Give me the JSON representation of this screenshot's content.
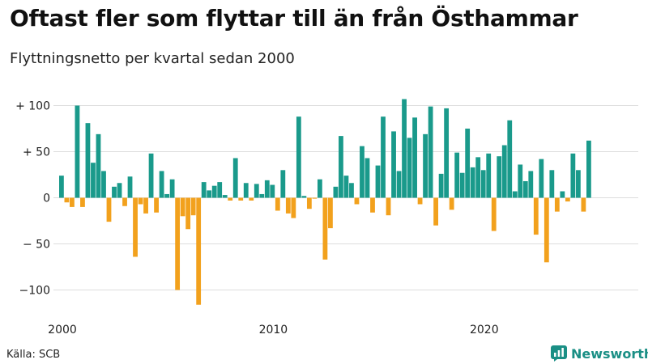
{
  "header": {
    "title": "Oftast fler som flyttar till än från Östhammar",
    "subtitle": "Flyttningsnetto per kvartal sedan 2000"
  },
  "footer": {
    "source": "Källa: SCB",
    "brand": "Newsworthy"
  },
  "colors": {
    "positive": "#1a9a8b",
    "negative": "#f2a11d",
    "grid": "#dddddd",
    "brand": "#1a8f85"
  },
  "chart_data": {
    "type": "bar",
    "title": "Oftast fler som flyttar till än från Östhammar",
    "subtitle": "Flyttningsnetto per kvartal sedan 2000",
    "xlabel": "",
    "ylabel": "",
    "ylim": [
      -115,
      110
    ],
    "grid": true,
    "legend": "none",
    "y_ticks": [
      {
        "value": 100,
        "label": "+ 100"
      },
      {
        "value": 50,
        "label": "+  50"
      },
      {
        "value": 0,
        "label": "0"
      },
      {
        "value": -50,
        "label": "− 50"
      },
      {
        "value": -100,
        "label": "−100"
      }
    ],
    "x_ticks": [
      {
        "value": 2000,
        "label": "2000"
      },
      {
        "value": 2010,
        "label": "2010"
      },
      {
        "value": 2020,
        "label": "2020"
      }
    ],
    "x_start": 2000,
    "periods_per_year": 4,
    "values": [
      24,
      -5,
      -10,
      100,
      -10,
      81,
      38,
      69,
      29,
      -26,
      12,
      16,
      -9,
      23,
      -64,
      -7,
      -17,
      48,
      -16,
      29,
      4,
      20,
      -100,
      -20,
      -34,
      -19,
      -116,
      17,
      8,
      13,
      17,
      3,
      -3,
      43,
      -3,
      16,
      -3,
      15,
      4,
      19,
      14,
      -14,
      30,
      -17,
      -22,
      88,
      2,
      -12,
      -1,
      20,
      -67,
      -33,
      12,
      67,
      24,
      16,
      -7,
      56,
      43,
      -16,
      35,
      88,
      -19,
      72,
      29,
      107,
      65,
      87,
      -7,
      69,
      99,
      -30,
      26,
      97,
      -13,
      49,
      27,
      75,
      33,
      44,
      30,
      48,
      -36,
      45,
      57,
      84,
      7,
      36,
      18,
      29,
      -40,
      42,
      -70,
      30,
      -15,
      7,
      -4,
      48,
      30,
      -15,
      62
    ]
  }
}
